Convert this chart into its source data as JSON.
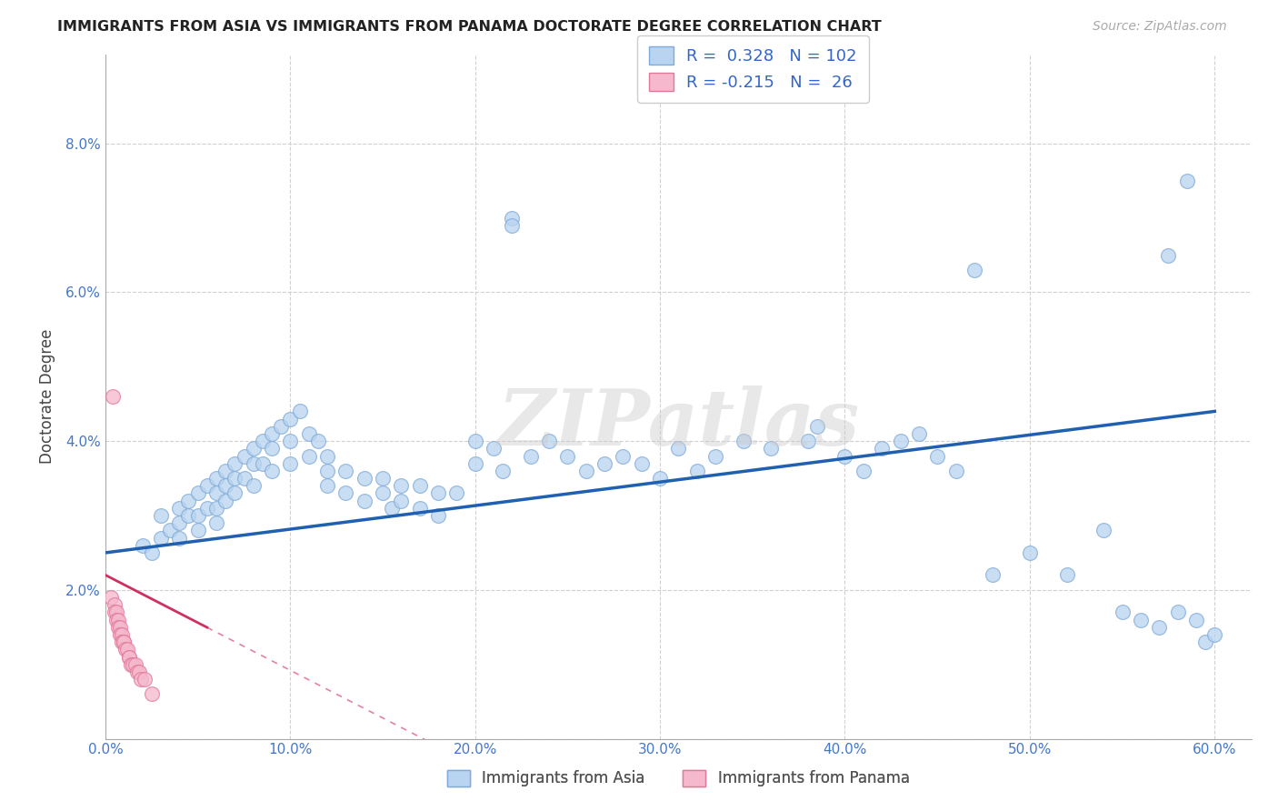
{
  "title": "IMMIGRANTS FROM ASIA VS IMMIGRANTS FROM PANAMA DOCTORATE DEGREE CORRELATION CHART",
  "source": "Source: ZipAtlas.com",
  "ylabel": "Doctorate Degree",
  "xlim": [
    0.0,
    0.62
  ],
  "ylim": [
    0.0,
    0.092
  ],
  "xticks": [
    0.0,
    0.1,
    0.2,
    0.3,
    0.4,
    0.5,
    0.6
  ],
  "yticks": [
    0.0,
    0.02,
    0.04,
    0.06,
    0.08
  ],
  "xticklabels": [
    "0.0%",
    "10.0%",
    "20.0%",
    "30.0%",
    "40.0%",
    "50.0%",
    "60.0%"
  ],
  "yticklabels": [
    "",
    "2.0%",
    "4.0%",
    "6.0%",
    "8.0%"
  ],
  "asia_color": "#b8d4f0",
  "asia_edge": "#80aad8",
  "panama_color": "#f5b8cc",
  "panama_edge": "#e07898",
  "regression_asia_color": "#2060b0",
  "regression_panama_color": "#d03060",
  "regression_asia_start_y": 0.025,
  "regression_asia_end_y": 0.044,
  "regression_panama_start_y": 0.022,
  "regression_panama_end_y": -0.01,
  "regression_panama_solid_end_x": 0.055,
  "legend_asia_label_r": "R =",
  "legend_asia_label_rval": "0.328",
  "legend_asia_label_n": "N =",
  "legend_asia_label_nval": "102",
  "legend_panama_label_r": "R =",
  "legend_panama_label_rval": "-0.215",
  "legend_panama_label_n": "N =",
  "legend_panama_label_nval": "26",
  "legend_bottom_asia": "Immigrants from Asia",
  "legend_bottom_panama": "Immigrants from Panama",
  "watermark": "ZIPatlas",
  "asia_x": [
    0.02,
    0.025,
    0.03,
    0.03,
    0.035,
    0.04,
    0.04,
    0.04,
    0.045,
    0.045,
    0.05,
    0.05,
    0.05,
    0.055,
    0.055,
    0.06,
    0.06,
    0.06,
    0.06,
    0.065,
    0.065,
    0.065,
    0.07,
    0.07,
    0.07,
    0.075,
    0.075,
    0.08,
    0.08,
    0.08,
    0.085,
    0.085,
    0.09,
    0.09,
    0.09,
    0.095,
    0.1,
    0.1,
    0.1,
    0.105,
    0.11,
    0.11,
    0.115,
    0.12,
    0.12,
    0.12,
    0.13,
    0.13,
    0.14,
    0.14,
    0.15,
    0.15,
    0.155,
    0.16,
    0.16,
    0.17,
    0.17,
    0.18,
    0.18,
    0.19,
    0.2,
    0.2,
    0.21,
    0.215,
    0.22,
    0.23,
    0.24,
    0.25,
    0.26,
    0.27,
    0.28,
    0.29,
    0.3,
    0.31,
    0.32,
    0.33,
    0.345,
    0.36,
    0.38,
    0.385,
    0.4,
    0.41,
    0.42,
    0.43,
    0.44,
    0.45,
    0.46,
    0.47,
    0.48,
    0.5,
    0.52,
    0.54,
    0.55,
    0.56,
    0.57,
    0.575,
    0.58,
    0.585,
    0.59,
    0.595,
    0.22,
    0.6
  ],
  "asia_y": [
    0.026,
    0.025,
    0.027,
    0.03,
    0.028,
    0.031,
    0.029,
    0.027,
    0.032,
    0.03,
    0.033,
    0.03,
    0.028,
    0.034,
    0.031,
    0.035,
    0.033,
    0.031,
    0.029,
    0.036,
    0.034,
    0.032,
    0.037,
    0.035,
    0.033,
    0.038,
    0.035,
    0.039,
    0.037,
    0.034,
    0.04,
    0.037,
    0.041,
    0.039,
    0.036,
    0.042,
    0.043,
    0.04,
    0.037,
    0.044,
    0.041,
    0.038,
    0.04,
    0.038,
    0.036,
    0.034,
    0.036,
    0.033,
    0.035,
    0.032,
    0.035,
    0.033,
    0.031,
    0.034,
    0.032,
    0.034,
    0.031,
    0.033,
    0.03,
    0.033,
    0.04,
    0.037,
    0.039,
    0.036,
    0.07,
    0.038,
    0.04,
    0.038,
    0.036,
    0.037,
    0.038,
    0.037,
    0.035,
    0.039,
    0.036,
    0.038,
    0.04,
    0.039,
    0.04,
    0.042,
    0.038,
    0.036,
    0.039,
    0.04,
    0.041,
    0.038,
    0.036,
    0.063,
    0.022,
    0.025,
    0.022,
    0.028,
    0.017,
    0.016,
    0.015,
    0.065,
    0.017,
    0.075,
    0.016,
    0.013,
    0.069,
    0.014
  ],
  "panama_x": [
    0.003,
    0.004,
    0.005,
    0.005,
    0.006,
    0.006,
    0.007,
    0.007,
    0.008,
    0.008,
    0.009,
    0.009,
    0.01,
    0.01,
    0.011,
    0.012,
    0.013,
    0.013,
    0.014,
    0.015,
    0.016,
    0.017,
    0.018,
    0.019,
    0.021,
    0.025
  ],
  "panama_y": [
    0.019,
    0.046,
    0.018,
    0.017,
    0.017,
    0.016,
    0.016,
    0.015,
    0.015,
    0.014,
    0.014,
    0.013,
    0.013,
    0.013,
    0.012,
    0.012,
    0.011,
    0.011,
    0.01,
    0.01,
    0.01,
    0.009,
    0.009,
    0.008,
    0.008,
    0.006
  ]
}
